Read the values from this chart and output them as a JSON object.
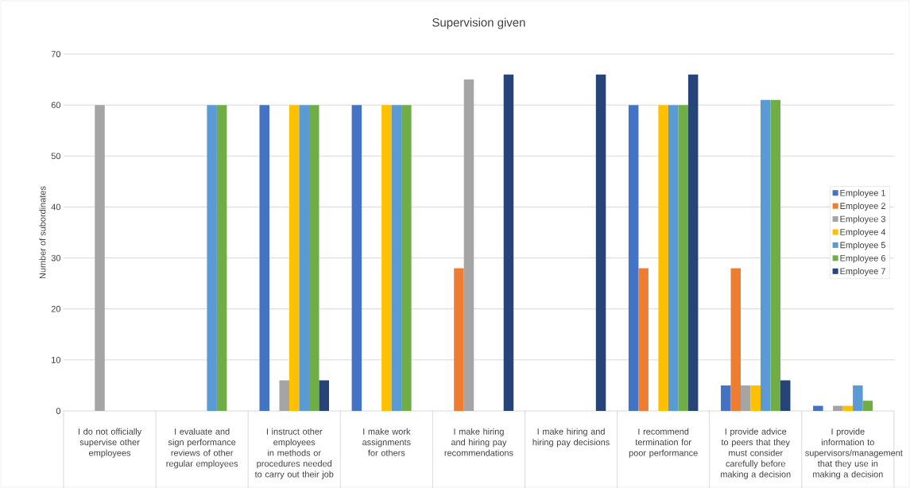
{
  "chart_data": {
    "type": "bar",
    "title": "Supervision given",
    "ylabel": "Number of subordinates",
    "categories": [
      "I do not officially supervise other employees",
      "I evaluate and sign performance reviews of other regular employees",
      "I instruct other employees in methods or procedures needed to carry out their job",
      "I make work assignments for others",
      "I make hiring and hiring pay recommendations",
      "I make hiring and hiring pay decisions",
      "I recommend termination for poor performance",
      "I provide advice to peers that they must consider carefully before making a decision",
      "I provide information to supervisors/management that they use in making a decision"
    ],
    "series": [
      {
        "name": "Employee 1",
        "color": "#4472c4",
        "values": [
          null,
          null,
          60,
          60,
          null,
          null,
          60,
          5,
          1
        ]
      },
      {
        "name": "Employee 2",
        "color": "#ed7d31",
        "values": [
          null,
          null,
          null,
          null,
          28,
          null,
          28,
          28,
          null
        ]
      },
      {
        "name": "Employee 3",
        "color": "#a5a5a5",
        "values": [
          60,
          null,
          6,
          null,
          65,
          null,
          null,
          5,
          1
        ]
      },
      {
        "name": "Employee 4",
        "color": "#ffc000",
        "values": [
          null,
          null,
          60,
          60,
          null,
          null,
          60,
          5,
          1
        ]
      },
      {
        "name": "Employee 5",
        "color": "#5b9bd5",
        "values": [
          null,
          60,
          60,
          60,
          null,
          null,
          60,
          61,
          5
        ]
      },
      {
        "name": "Employee 6",
        "color": "#70ad47",
        "values": [
          null,
          60,
          60,
          60,
          null,
          null,
          60,
          61,
          2
        ]
      },
      {
        "name": "Employee 7",
        "color": "#264478",
        "values": [
          null,
          null,
          6,
          null,
          66,
          66,
          66,
          6,
          null
        ]
      }
    ],
    "ylim": [
      0,
      70
    ],
    "yticks": [
      0,
      10,
      20,
      30,
      40,
      50,
      60,
      70
    ],
    "grid": "y",
    "legend": "right"
  }
}
